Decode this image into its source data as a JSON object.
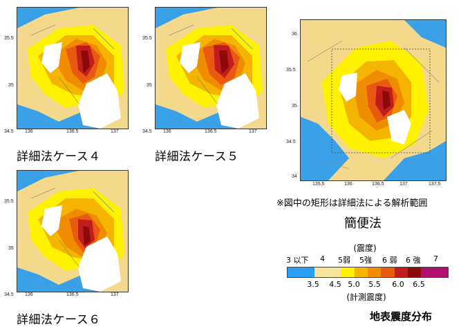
{
  "maps": [
    {
      "id": "case4",
      "caption": "詳細法ケース４",
      "yticks": [
        "35.5",
        "35",
        "34.5"
      ],
      "xticks": [
        "136",
        "136.5",
        "137"
      ]
    },
    {
      "id": "case5",
      "caption": "詳細法ケース５",
      "yticks": [
        "35.5",
        "35",
        "34.5"
      ],
      "xticks": [
        "136",
        "136.5",
        "137"
      ]
    },
    {
      "id": "case6",
      "caption": "詳細法ケース６",
      "yticks": [
        "35.5",
        "35",
        "34.5"
      ],
      "xticks": [
        "136",
        "136.5",
        "137"
      ]
    }
  ],
  "simple_map": {
    "yticks": [
      "36",
      "35.5",
      "35",
      "34.5",
      "34"
    ],
    "xticks": [
      "135.5",
      "136",
      "136.5",
      "137",
      "137.5"
    ],
    "note": "※図中の矩形は詳細法による解析範囲",
    "caption": "簡便法"
  },
  "legend": {
    "top_label": "(震度)",
    "intensity_labels": [
      "3 以下",
      "4",
      "5弱",
      "5強",
      "6 弱",
      "6 強",
      "7"
    ],
    "numbers": [
      "3.5",
      "4.5",
      "5.0",
      "5.5",
      "6.0",
      "6.5"
    ],
    "bottom_label": "(計測震度)",
    "colors": [
      "#2a9df4",
      "#2a9df4",
      "#f7e39a",
      "#f7e39a",
      "#fff200",
      "#f5b400",
      "#f08c00",
      "#e85a12",
      "#c21d1d",
      "#8c0a0a",
      "#b0106e",
      "#b0106e"
    ],
    "title": "地表震度分布"
  }
}
